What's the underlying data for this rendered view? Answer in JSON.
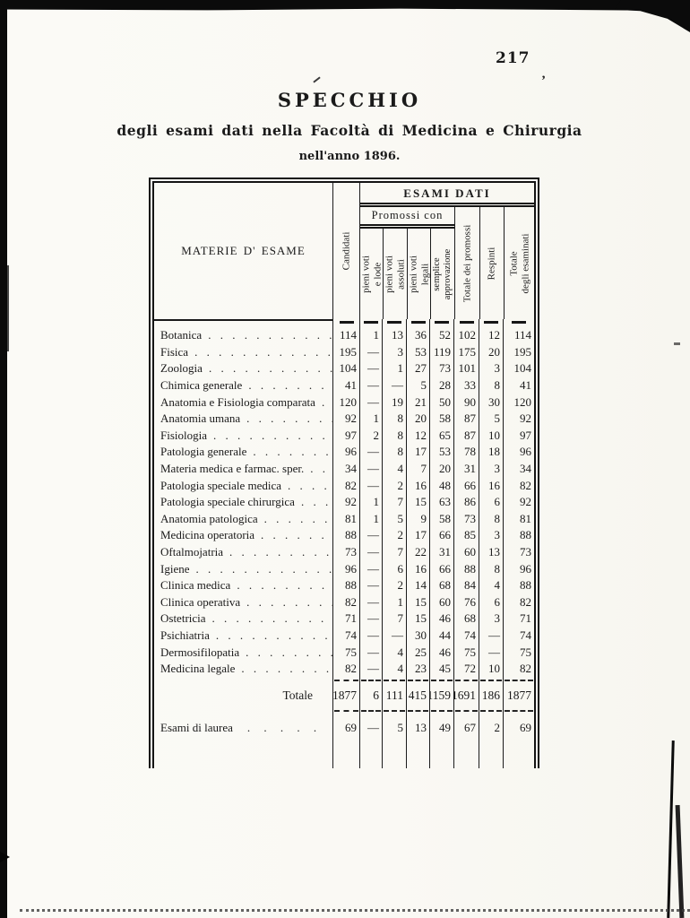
{
  "ink": "#1a1a1a",
  "paper": "#fbfaf6",
  "page": {
    "number": "217",
    "title": "SPECCHIO",
    "subtitle": "degli esami dati nella Facoltà di Medicina e Chirurgia",
    "subsubtitle": "nell'anno 1896."
  },
  "table": {
    "dot_leader": ". . . . . . . . . . . . . . . . . . . . . . . . . . . . . . . .",
    "laurea_dots": ". . . . .",
    "col_headers": {
      "materie": "MATERIE D' ESAME",
      "candidati": "Candidati",
      "esami_dati": "ESAMI DATI",
      "promossi_con": "Promossi con",
      "sub": [
        {
          "line1": "pieni voti",
          "line2": "e lode"
        },
        {
          "line1": "pieni voti",
          "line2": "assoluti"
        },
        {
          "line1": "pieni voti",
          "line2": "legali"
        },
        {
          "line1": "semplice",
          "line2": "approvazione"
        }
      ],
      "totale_promossi": "Totale dei promossi",
      "respinti": "Respinti",
      "totale_esaminati": {
        "line1": "Totale",
        "line2": "degli esaminati"
      }
    },
    "rows": [
      {
        "name": "Botanica",
        "values": [
          "114",
          "1",
          "13",
          "36",
          "52",
          "102",
          "12",
          "114"
        ]
      },
      {
        "name": "Fisica",
        "values": [
          "195",
          "—",
          "3",
          "53",
          "119",
          "175",
          "20",
          "195"
        ]
      },
      {
        "name": "Zoologia",
        "values": [
          "104",
          "—",
          "1",
          "27",
          "73",
          "101",
          "3",
          "104"
        ]
      },
      {
        "name": "Chimica generale",
        "values": [
          "41",
          "—",
          "—",
          "5",
          "28",
          "33",
          "8",
          "41"
        ]
      },
      {
        "name": "Anatomia e Fisiologia comparata",
        "values": [
          "120",
          "—",
          "19",
          "21",
          "50",
          "90",
          "30",
          "120"
        ]
      },
      {
        "name": "Anatomia umana",
        "values": [
          "92",
          "1",
          "8",
          "20",
          "58",
          "87",
          "5",
          "92"
        ]
      },
      {
        "name": "Fisiologia",
        "values": [
          "97",
          "2",
          "8",
          "12",
          "65",
          "87",
          "10",
          "97"
        ]
      },
      {
        "name": "Patologia generale",
        "values": [
          "96",
          "—",
          "8",
          "17",
          "53",
          "78",
          "18",
          "96"
        ]
      },
      {
        "name": "Materia medica e farmac. sper.",
        "values": [
          "34",
          "—",
          "4",
          "7",
          "20",
          "31",
          "3",
          "34"
        ]
      },
      {
        "name": "Patologia speciale medica",
        "values": [
          "82",
          "—",
          "2",
          "16",
          "48",
          "66",
          "16",
          "82"
        ]
      },
      {
        "name": "Patologia speciale chirurgica",
        "values": [
          "92",
          "1",
          "7",
          "15",
          "63",
          "86",
          "6",
          "92"
        ]
      },
      {
        "name": "Anatomia patologica",
        "values": [
          "81",
          "1",
          "5",
          "9",
          "58",
          "73",
          "8",
          "81"
        ]
      },
      {
        "name": "Medicina operatoria",
        "values": [
          "88",
          "—",
          "2",
          "17",
          "66",
          "85",
          "3",
          "88"
        ]
      },
      {
        "name": "Oftalmojatria",
        "values": [
          "73",
          "—",
          "7",
          "22",
          "31",
          "60",
          "13",
          "73"
        ]
      },
      {
        "name": "Igiene",
        "values": [
          "96",
          "—",
          "6",
          "16",
          "66",
          "88",
          "8",
          "96"
        ]
      },
      {
        "name": "Clinica medica",
        "values": [
          "88",
          "—",
          "2",
          "14",
          "68",
          "84",
          "4",
          "88"
        ]
      },
      {
        "name": "Clinica operativa",
        "values": [
          "82",
          "—",
          "1",
          "15",
          "60",
          "76",
          "6",
          "82"
        ]
      },
      {
        "name": "Ostetricia",
        "values": [
          "71",
          "—",
          "7",
          "15",
          "46",
          "68",
          "3",
          "71"
        ]
      },
      {
        "name": "Psichiatria",
        "values": [
          "74",
          "—",
          "—",
          "30",
          "44",
          "74",
          "—",
          "74"
        ]
      },
      {
        "name": "Dermosifilopatia",
        "values": [
          "75",
          "—",
          "4",
          "25",
          "46",
          "75",
          "—",
          "75"
        ]
      },
      {
        "name": "Medicina legale",
        "values": [
          "82",
          "—",
          "4",
          "23",
          "45",
          "72",
          "10",
          "82"
        ]
      }
    ],
    "totale_label": "Totale",
    "totale": [
      "1877",
      "6",
      "111",
      "415",
      "1159",
      "1691",
      "186",
      "1877"
    ],
    "laurea_label": "Esami di laurea",
    "laurea": [
      "69",
      "—",
      "5",
      "13",
      "49",
      "67",
      "2",
      "69"
    ]
  }
}
